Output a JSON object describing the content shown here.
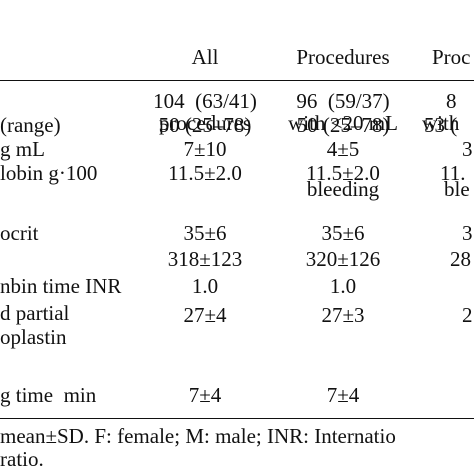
{
  "table": {
    "columns": [
      {
        "lines": [
          "All",
          "procedures"
        ]
      },
      {
        "lines": [
          "Procedures",
          "with <20 mL",
          "bleeding"
        ]
      },
      {
        "lines": [
          "Proc",
          "with",
          "ble"
        ]
      }
    ],
    "rows": [
      {
        "label": "",
        "values": [
          "104  (63/41)",
          "96  (59/37)",
          "8"
        ]
      },
      {
        "label": "(range)",
        "values": [
          "50 (25–78)",
          "50 (25–78)",
          "53 ("
        ]
      },
      {
        "label": "g mL",
        "values": [
          "7±10",
          "4±5",
          "3"
        ]
      },
      {
        "label": "lobin g·100",
        "values": [
          "11.5±2.0",
          "11.5±2.0",
          "11."
        ]
      },
      {
        "label": "ocrit",
        "values": [
          "35±6",
          "35±6",
          "3"
        ]
      },
      {
        "label": "",
        "values": [
          "318±123",
          "320±126",
          "28"
        ]
      },
      {
        "label": "nbin time INR",
        "values": [
          "1.0",
          "1.0",
          ""
        ]
      },
      {
        "label": "d partial",
        "values": [
          "27±4",
          "27±3",
          "2"
        ]
      },
      {
        "label": "oplastin",
        "values": [
          "",
          "",
          ""
        ]
      },
      {
        "label": "g time  min",
        "values": [
          "7±4",
          "7±4",
          ""
        ]
      }
    ]
  },
  "footnote": {
    "line1": "mean±SD. F: female; M: male; INR: Internatio",
    "line2": "ratio."
  }
}
